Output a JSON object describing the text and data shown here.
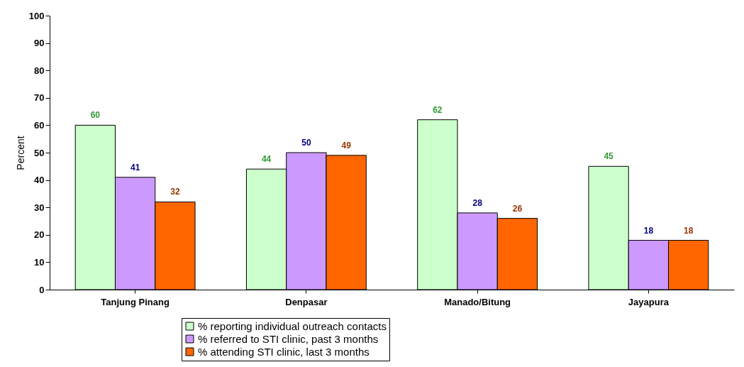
{
  "chart_data": {
    "type": "bar",
    "ylabel": "Percent",
    "categories": [
      "Tanjung Pinang",
      "Denpasar",
      "Manado/Bitung",
      "Jayapura"
    ],
    "series": [
      {
        "name": "% reporting individual outreach contacts",
        "color": "#ccffcc",
        "values": [
          60,
          44,
          62,
          45
        ]
      },
      {
        "name": "% referred to STI clinic, past 3 months",
        "color": "#cc99ff",
        "values": [
          41,
          50,
          28,
          18
        ]
      },
      {
        "name": "% attending STI clinic, last 3 months",
        "color": "#ff6600",
        "values": [
          32,
          49,
          26,
          18
        ]
      }
    ],
    "ylim": [
      0,
      100
    ],
    "yticks": [
      0,
      10,
      20,
      30,
      40,
      50,
      60,
      70,
      80,
      90,
      100
    ],
    "grid": false,
    "legend": "bottom",
    "data_labels": true
  }
}
